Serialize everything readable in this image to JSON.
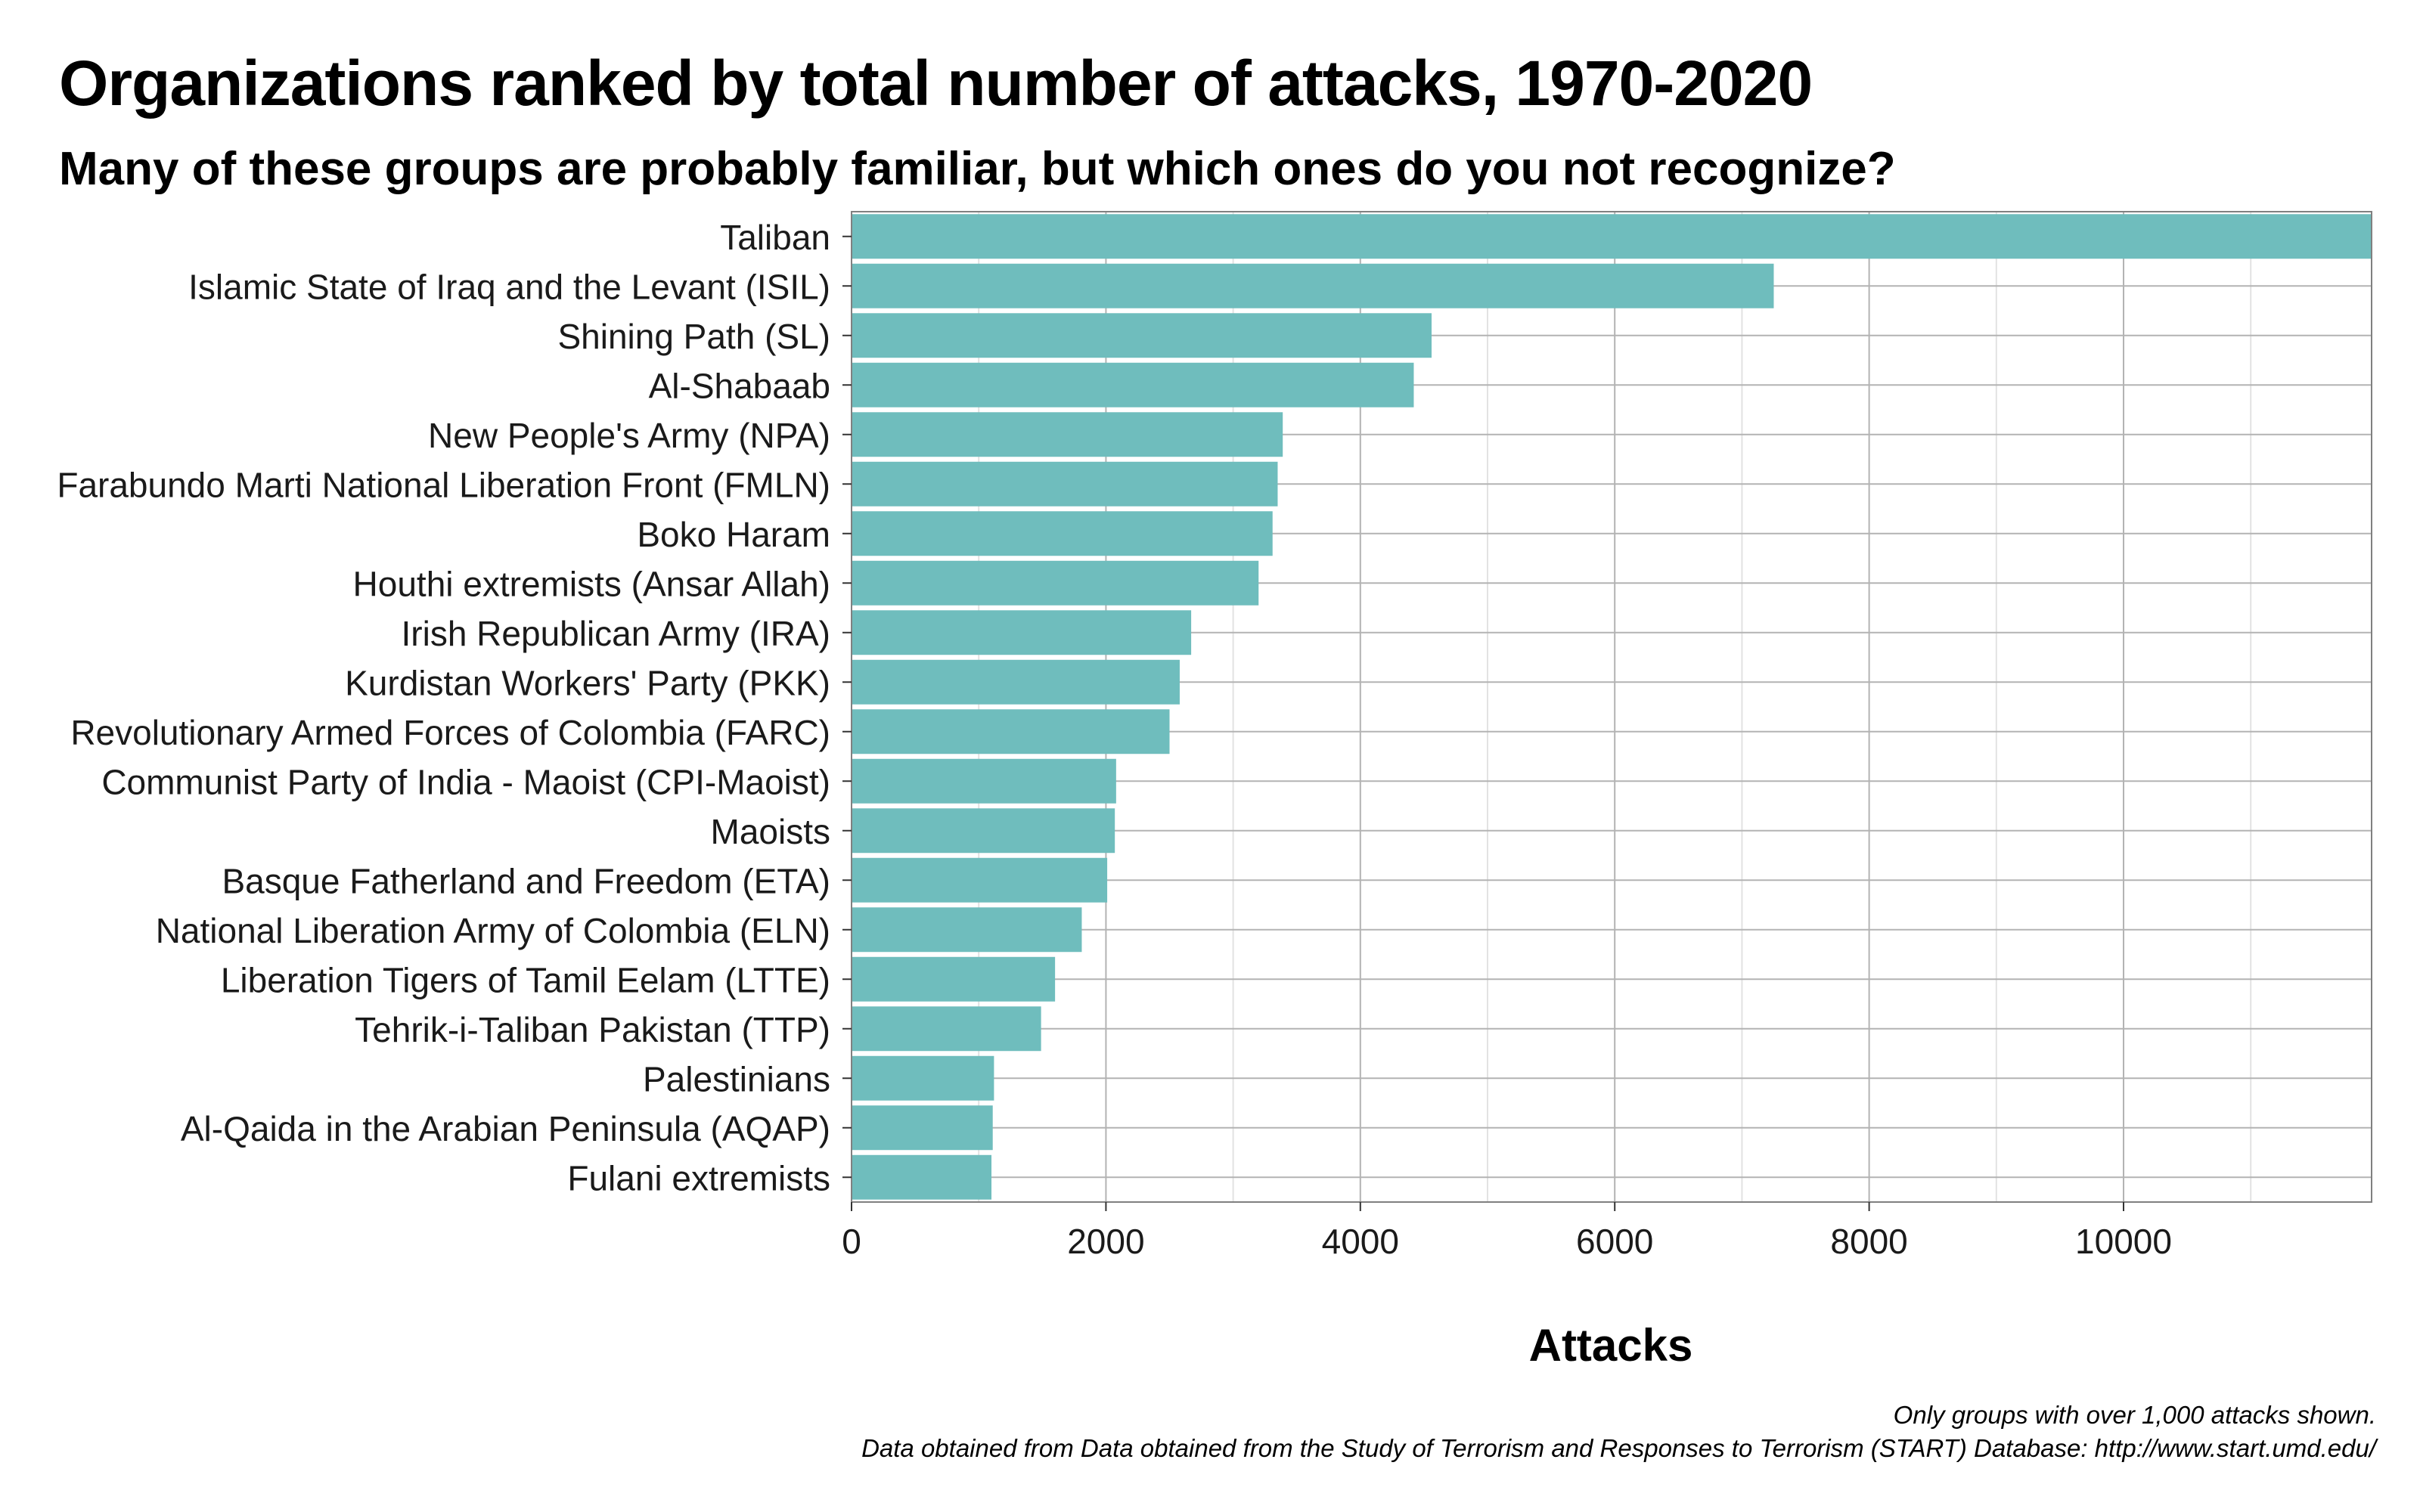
{
  "title": "Organizations ranked by total number of attacks, 1970-2020",
  "subtitle": "Many of these groups are probably familiar, but which ones do you not recognize?",
  "caption": {
    "line1": "Only groups with over 1,000 attacks shown.",
    "line2": "Data obtained from Data obtained from the Study of Terrorism and Responses to Terrorism (START) Database: http://www.start.umd.edu/"
  },
  "colors": {
    "bar": "#6fbdbd",
    "grid_major": "#b3b3b3",
    "grid_minor": "#e2e2e2",
    "panel_border": "#808080"
  },
  "chart_data": {
    "type": "bar",
    "orientation": "horizontal",
    "xlabel": "Attacks",
    "ylabel": "",
    "xlim": [
      0,
      11950
    ],
    "x_ticks": [
      0,
      2000,
      4000,
      6000,
      8000,
      10000
    ],
    "grid": true,
    "categories": [
      "Taliban",
      "Islamic State of Iraq and the Levant (ISIL)",
      "Shining Path (SL)",
      "Al-Shabaab",
      "New People's Army (NPA)",
      "Farabundo Marti National Liberation Front (FMLN)",
      "Boko Haram",
      "Houthi extremists (Ansar Allah)",
      "Irish Republican Army (IRA)",
      "Kurdistan Workers' Party (PKK)",
      "Revolutionary Armed Forces of Colombia (FARC)",
      "Communist Party of India - Maoist (CPI-Maoist)",
      "Maoists",
      "Basque Fatherland and Freedom (ETA)",
      "National Liberation Army of Colombia (ELN)",
      "Liberation Tigers of Tamil Eelam (LTTE)",
      "Tehrik-i-Taliban Pakistan (TTP)",
      "Palestinians",
      "Al-Qaida in the Arabian Peninsula (AQAP)",
      "Fulani extremists"
    ],
    "values": [
      11950,
      7250,
      4560,
      4420,
      3390,
      3350,
      3310,
      3200,
      2670,
      2580,
      2500,
      2080,
      2070,
      2010,
      1810,
      1600,
      1490,
      1120,
      1110,
      1100
    ]
  }
}
